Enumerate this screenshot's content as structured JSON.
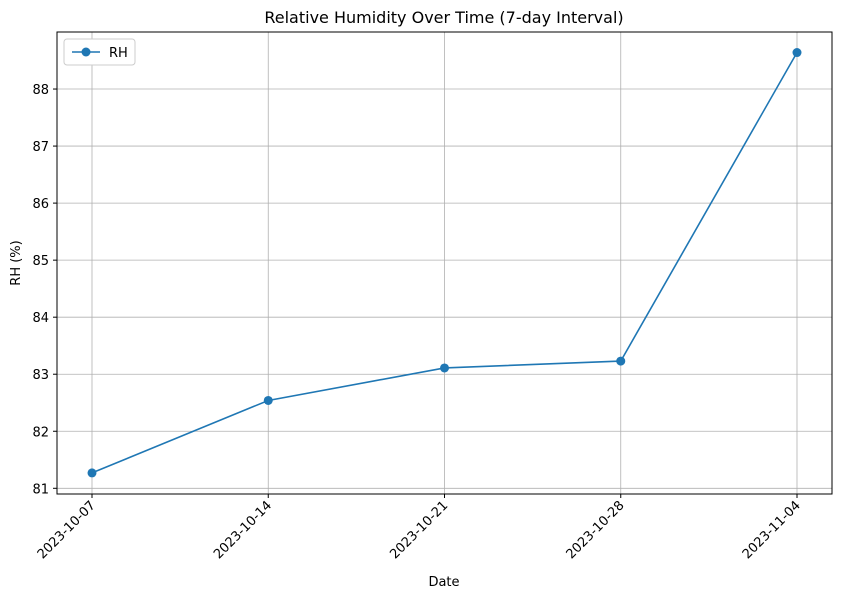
{
  "chart_data": {
    "type": "line",
    "title": "Relative Humidity Over Time (7-day Interval)",
    "xlabel": "Date",
    "ylabel": "RH (%)",
    "x": [
      "2023-10-07",
      "2023-10-14",
      "2023-10-21",
      "2023-10-28",
      "2023-11-04"
    ],
    "series": [
      {
        "name": "RH",
        "values": [
          81.27,
          82.54,
          83.11,
          83.23,
          88.64
        ],
        "color": "#1f77b4",
        "marker": "circle"
      }
    ],
    "yticks": [
      81,
      82,
      83,
      84,
      85,
      86,
      87,
      88
    ],
    "ylim": [
      80.9,
      89.0
    ],
    "grid": true,
    "legend": "top-left"
  }
}
